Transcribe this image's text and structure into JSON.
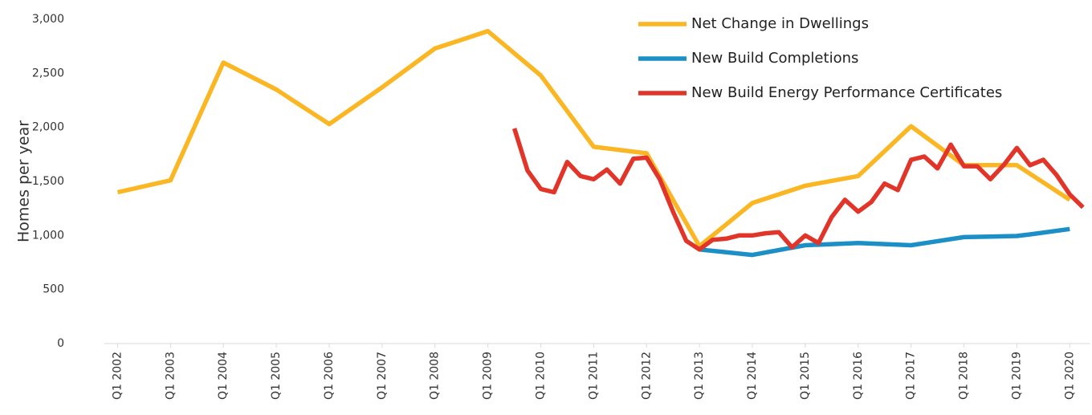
{
  "chart_data": {
    "type": "line",
    "y_label": "Homes per year",
    "xlim": [
      2001.75,
      2020.375
    ],
    "ylim": [
      0,
      3000
    ],
    "xticks": [
      {
        "value": 2002,
        "label": "Q1 2002"
      },
      {
        "value": 2003,
        "label": "Q1 2003"
      },
      {
        "value": 2004,
        "label": "Q1 2004"
      },
      {
        "value": 2005,
        "label": "Q1 2005"
      },
      {
        "value": 2006,
        "label": "Q1 2006"
      },
      {
        "value": 2007,
        "label": "Q1 2007"
      },
      {
        "value": 2008,
        "label": "Q1 2008"
      },
      {
        "value": 2009,
        "label": "Q1 2009"
      },
      {
        "value": 2010,
        "label": "Q1 2010"
      },
      {
        "value": 2011,
        "label": "Q1 2011"
      },
      {
        "value": 2012,
        "label": "Q1 2012"
      },
      {
        "value": 2013,
        "label": "Q1 2013"
      },
      {
        "value": 2014,
        "label": "Q1 2014"
      },
      {
        "value": 2015,
        "label": "Q1 2015"
      },
      {
        "value": 2016,
        "label": "Q1 2016"
      },
      {
        "value": 2017,
        "label": "Q1 2017"
      },
      {
        "value": 2018,
        "label": "Q1 2018"
      },
      {
        "value": 2019,
        "label": "Q1 2019"
      },
      {
        "value": 2020,
        "label": "Q1 2020"
      }
    ],
    "yticks": [
      0,
      500,
      {
        "value": 1000,
        "label": "1,000"
      },
      {
        "value": 1500,
        "label": "1,500"
      },
      {
        "value": 2000,
        "label": "2,000"
      },
      {
        "value": 2500,
        "label": "2,500"
      },
      {
        "value": 3000,
        "label": "3,000"
      }
    ],
    "grid": false,
    "legend": "top-right",
    "series": [
      {
        "name": "Net Change in Dwellings",
        "color": "#fbb623",
        "x": [
          2002,
          2003,
          2004,
          2005,
          2006,
          2007,
          2008,
          2008.5,
          2009,
          2010,
          2011,
          2011.5,
          2012,
          2013,
          2014,
          2015,
          2016,
          2017,
          2018,
          2019,
          2019.5,
          2020
        ],
        "values": [
          1400,
          1510,
          2600,
          2350,
          2030,
          2370,
          2730,
          2810,
          2890,
          2480,
          1820,
          1790,
          1760,
          900,
          1300,
          1460,
          1550,
          2010,
          1650,
          1650,
          1490,
          1330
        ]
      },
      {
        "name": "New Build Completions",
        "color": "#1b8fc6",
        "x": [
          2013,
          2014,
          2015,
          2016,
          2017,
          2018,
          2018.5,
          2019,
          2019.25,
          2020
        ],
        "values": [
          870,
          820,
          910,
          930,
          910,
          985,
          990,
          995,
          1010,
          1060
        ]
      },
      {
        "name": "New Build Energy Performance Certificates",
        "color": "#e2352a",
        "x": [
          2009.5,
          2009.75,
          2010,
          2010.25,
          2010.5,
          2010.75,
          2011,
          2011.25,
          2011.5,
          2011.75,
          2012,
          2012.25,
          2012.5,
          2012.75,
          2013,
          2013.25,
          2013.5,
          2013.75,
          2014,
          2014.25,
          2014.5,
          2014.75,
          2015,
          2015.25,
          2015.5,
          2015.75,
          2016,
          2016.25,
          2016.5,
          2016.75,
          2017,
          2017.25,
          2017.5,
          2017.75,
          2018,
          2018.25,
          2018.5,
          2018.75,
          2019,
          2019.25,
          2019.5,
          2019.75,
          2020,
          2020.25
        ],
        "values": [
          1990,
          1600,
          1430,
          1400,
          1680,
          1550,
          1520,
          1610,
          1480,
          1710,
          1720,
          1520,
          1220,
          950,
          870,
          960,
          970,
          1000,
          1000,
          1020,
          1030,
          890,
          1000,
          930,
          1170,
          1330,
          1220,
          1310,
          1480,
          1420,
          1700,
          1730,
          1620,
          1840,
          1640,
          1640,
          1520,
          1650,
          1810,
          1650,
          1700,
          1560,
          1380,
          1260
        ]
      }
    ]
  }
}
